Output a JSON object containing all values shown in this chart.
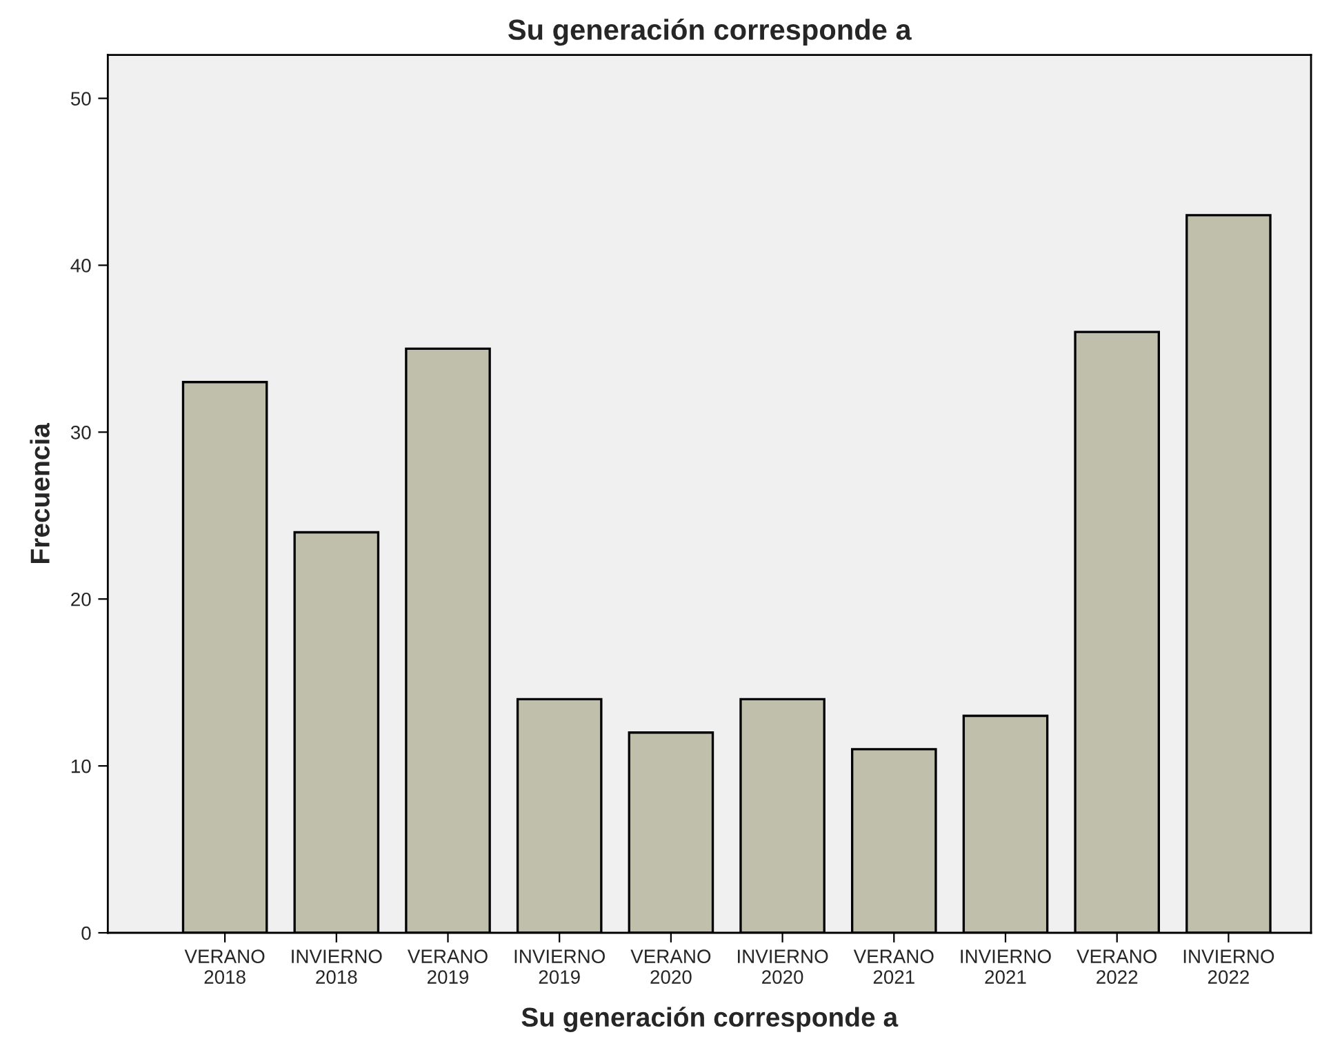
{
  "chart_data": {
    "type": "bar",
    "title": "Su generación corresponde a",
    "xlabel": "Su generación corresponde a",
    "ylabel": "Frecuencia",
    "categories": [
      "VERANO\n2018",
      "INVIERNO\n2018",
      "VERANO\n2019",
      "INVIERNO\n2019",
      "VERANO\n2020",
      "INVIERNO\n2020",
      "VERANO\n2021",
      "INVIERNO\n2021",
      "VERANO\n2022",
      "INVIERNO\n2022"
    ],
    "values": [
      33,
      24,
      35,
      14,
      12,
      14,
      11,
      13,
      36,
      43
    ],
    "color": "#c0bfac",
    "ylim": [
      0,
      52.6
    ],
    "yticks": [
      0,
      10,
      20,
      30,
      40,
      50
    ],
    "grid": false
  }
}
